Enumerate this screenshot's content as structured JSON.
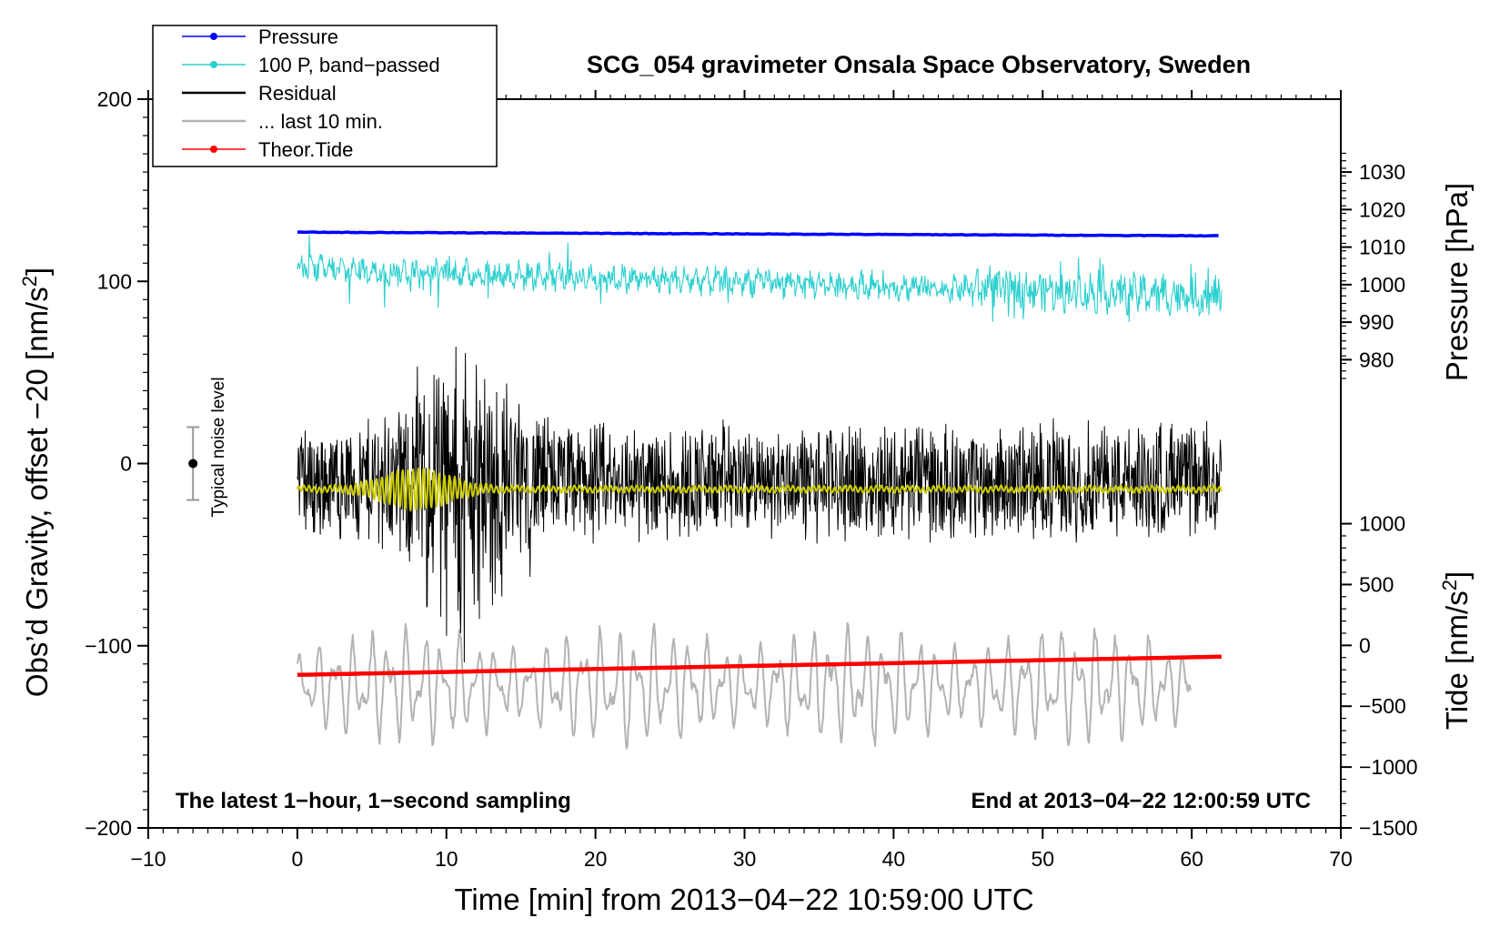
{
  "chart_data": {
    "type": "line",
    "title": "SCG_054 gravimeter Onsala Space Observatory, Sweden",
    "xlabel": "Time [min] from 2013−04−22 10:59:00 UTC",
    "ylabel_left_main": "Obs’d Gravity, offset −20 [nm/s",
    "ylabel_left_sup": "2",
    "ylabel_left_end": "]",
    "ylabel_pressure": "Pressure [hPa]",
    "ylabel_tide_main": "Tide [nm/s",
    "ylabel_tide_sup": "2",
    "ylabel_tide_end": "]",
    "xlim": [
      -10,
      70
    ],
    "ylim": [
      -200,
      200
    ],
    "x_ticks": [
      {
        "v": -10,
        "label": "−10"
      },
      {
        "v": 0,
        "label": "0"
      },
      {
        "v": 10,
        "label": "10"
      },
      {
        "v": 20,
        "label": "20"
      },
      {
        "v": 30,
        "label": "30"
      },
      {
        "v": 40,
        "label": "40"
      },
      {
        "v": 50,
        "label": "50"
      },
      {
        "v": 60,
        "label": "60"
      },
      {
        "v": 70,
        "label": "70"
      }
    ],
    "y_ticks_left": [
      {
        "v": 200,
        "label": "200"
      },
      {
        "v": 100,
        "label": "100"
      },
      {
        "v": 0,
        "label": "0"
      },
      {
        "v": -100,
        "label": "−100"
      },
      {
        "v": -200,
        "label": "−200"
      }
    ],
    "pressure_axis": {
      "ticks": [
        {
          "v": 1030,
          "label": "1030"
        },
        {
          "v": 1020,
          "label": "1020"
        },
        {
          "v": 1010,
          "label": "1010"
        },
        {
          "v": 1000,
          "label": "1000"
        },
        {
          "v": 990,
          "label": "990"
        },
        {
          "v": 980,
          "label": "980"
        }
      ],
      "map": {
        "hpa_a": 1030,
        "y_a": 160,
        "hpa_b": 980,
        "y_b": 57
      }
    },
    "tide_axis": {
      "ticks": [
        {
          "v": 1000,
          "label": "1000"
        },
        {
          "v": 500,
          "label": "500"
        },
        {
          "v": 0,
          "label": "0"
        },
        {
          "v": -500,
          "label": "−500"
        },
        {
          "v": -1000,
          "label": "−1000"
        },
        {
          "v": -1500,
          "label": "−1500"
        }
      ],
      "map": {
        "tide_a": 1000,
        "y_a": -33,
        "tide_b": -1500,
        "y_b": -200
      }
    },
    "legend": {
      "placement": "top-left",
      "entries": [
        {
          "label": "Pressure",
          "color": "#0000ff",
          "marker": true
        },
        {
          "label": "100 P, band−passed",
          "color": "#2ecfcf",
          "marker": true
        },
        {
          "label": "Residual",
          "color": "#000000",
          "marker": false
        },
        {
          "label": "... last 10 min.",
          "color": "#b3b3b3",
          "marker": false
        },
        {
          "label": "Theor.Tide",
          "color": "#ff0000",
          "marker": true
        }
      ]
    },
    "series": [
      {
        "name": "Pressure",
        "color": "#0000ff",
        "x_range": [
          0,
          62
        ],
        "y_start": 127,
        "y_end": 125,
        "noise": 0.3
      },
      {
        "name": "100 P, band−passed",
        "color": "#2ecfcf",
        "x_range": [
          0,
          62
        ],
        "y_start": 107,
        "y_end": 92,
        "noise_amplitude": 12
      },
      {
        "name": "Residual",
        "color": "#000000",
        "x_range": [
          0,
          62
        ],
        "center": -10,
        "noise_amplitude": 35,
        "peak_min": 11,
        "peak_amplitude": 70
      },
      {
        "name": "Residual (filtered)",
        "color": "#cccc00",
        "x_range": [
          0,
          62
        ],
        "center": -14,
        "burst_center_min": 8,
        "burst_amplitude": 10
      },
      {
        "name": "... last 10 min.",
        "color": "#b3b3b3",
        "x_range": [
          0,
          60
        ],
        "center": -122,
        "amplitude": 25
      },
      {
        "name": "Theor.Tide",
        "color": "#ff0000",
        "x_range": [
          0,
          62
        ],
        "y_start": -116,
        "y_end": -106
      }
    ],
    "noise_level": {
      "x": -7,
      "y_center": 0,
      "half_range": 20,
      "label": "Typical noise level"
    },
    "annotations": {
      "bottom_left": "The latest 1−hour, 1−second sampling",
      "bottom_right": "End at 2013−04−22 12:00:59 UTC"
    }
  }
}
